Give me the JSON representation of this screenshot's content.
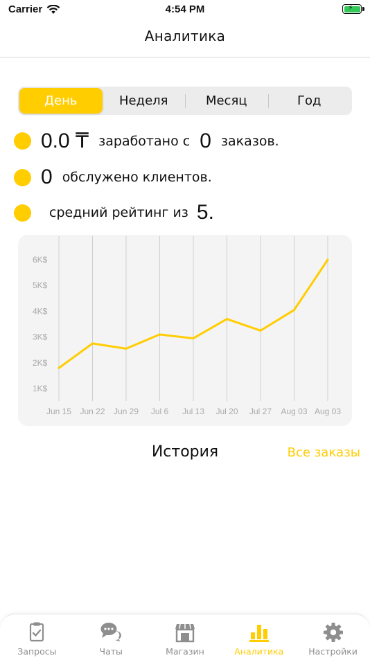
{
  "status_bar": {
    "carrier": "Carrier",
    "time": "4:54 PM"
  },
  "nav": {
    "title": "Аналитика"
  },
  "periods": [
    {
      "label": "День",
      "active": true
    },
    {
      "label": "Неделя",
      "active": false
    },
    {
      "label": "Месяц",
      "active": false
    },
    {
      "label": "Год",
      "active": false
    }
  ],
  "stats": {
    "earned_amount": "0.0 ₸",
    "earned_text": "заработано с",
    "orders_count": "0",
    "orders_text": "заказов.",
    "clients_count": "0",
    "clients_text": "обслужено клиентов.",
    "rating_text": "средний рейтинг из",
    "rating_max": "5."
  },
  "chart_data": {
    "type": "line",
    "categories": [
      "Jun 15",
      "Jun 22",
      "Jun 29",
      "Jul 6",
      "Jul 13",
      "Jul 20",
      "Jul 27",
      "Aug 03",
      "Aug 03"
    ],
    "y_tick_labels": [
      "1K$",
      "2K$",
      "3K$",
      "4K$",
      "5K$",
      "6K$"
    ],
    "series": [
      {
        "values": [
          1800,
          2750,
          2550,
          3100,
          2950,
          3700,
          3250,
          4050,
          6000
        ]
      }
    ],
    "xlabel": "",
    "ylabel": "",
    "ylim": [
      1000,
      6000
    ],
    "grid": "vertical",
    "line_color": "#ffcd00"
  },
  "history": {
    "title": "История",
    "all_orders_link": "Все заказы"
  },
  "tabs": [
    {
      "label": "Запросы",
      "icon": "clipboard-check-icon",
      "active": false
    },
    {
      "label": "Чаты",
      "icon": "chat-bubbles-icon",
      "active": false
    },
    {
      "label": "Магазин",
      "icon": "store-icon",
      "active": false
    },
    {
      "label": "Аналитика",
      "icon": "bar-chart-icon",
      "active": true
    },
    {
      "label": "Настройки",
      "icon": "gear-icon",
      "active": false
    }
  ],
  "colors": {
    "accent": "#ffcd00",
    "inactive": "#8e8e8e"
  }
}
